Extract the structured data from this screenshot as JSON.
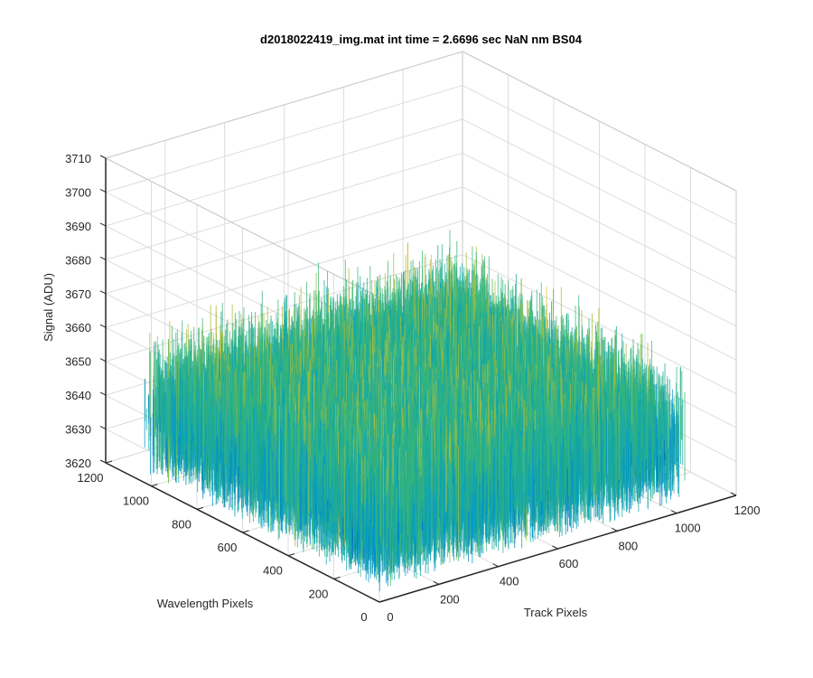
{
  "chart_data": {
    "type": "surface",
    "title": "d2018022419_img.mat int time = 2.6696 sec  NaN nm BS04",
    "xlabel": "Track Pixels",
    "ylabel": "Wavelength Pixels",
    "zlabel": "Signal (ADU)",
    "xlim": [
      0,
      1200
    ],
    "ylim": [
      0,
      1200
    ],
    "zlim": [
      3620,
      3710
    ],
    "xticks": [
      0,
      200,
      400,
      600,
      800,
      1000,
      1200
    ],
    "yticks": [
      0,
      200,
      400,
      600,
      800,
      1000,
      1200
    ],
    "zticks": [
      3620,
      3630,
      3640,
      3650,
      3660,
      3670,
      3680,
      3690,
      3700,
      3710
    ],
    "surface_extent": {
      "x": [
        1,
        1024
      ],
      "y": [
        1,
        1024
      ]
    },
    "signal_mean": 3650,
    "signal_spread": 30,
    "colormap": [
      "#0072bd",
      "#0096cc",
      "#17a8a4",
      "#38b67a",
      "#a5be3c",
      "#e6c024"
    ],
    "grid": true,
    "view": "3d-isometric"
  }
}
